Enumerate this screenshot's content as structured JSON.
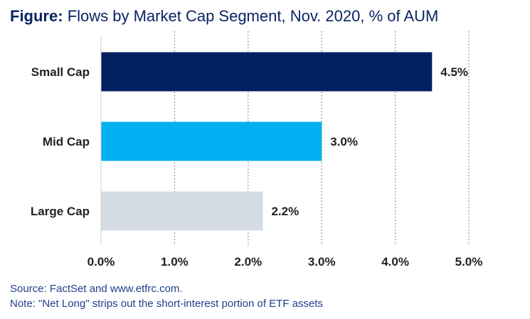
{
  "title": {
    "lead": "Figure:",
    "text": "Flows by Market Cap Segment, Nov. 2020, % of AUM"
  },
  "chart_data": {
    "type": "bar",
    "orientation": "horizontal",
    "categories": [
      "Small Cap",
      "Mid Cap",
      "Large Cap"
    ],
    "values": [
      4.5,
      3.0,
      2.2
    ],
    "value_labels": [
      "4.5%",
      "3.0%",
      "2.2%"
    ],
    "colors": [
      "#002060",
      "#00b0f0",
      "#d6dce4"
    ],
    "xlim": [
      0,
      5
    ],
    "x_ticks": [
      "0.0%",
      "1.0%",
      "2.0%",
      "3.0%",
      "4.0%",
      "5.0%"
    ],
    "grid": "vertical dotted",
    "legend": "none"
  },
  "footer": {
    "source": "Source: FactSet and www.etfrc.com.",
    "note": "Note: \"Net Long\" strips out the short-interest portion of ETF assets"
  }
}
